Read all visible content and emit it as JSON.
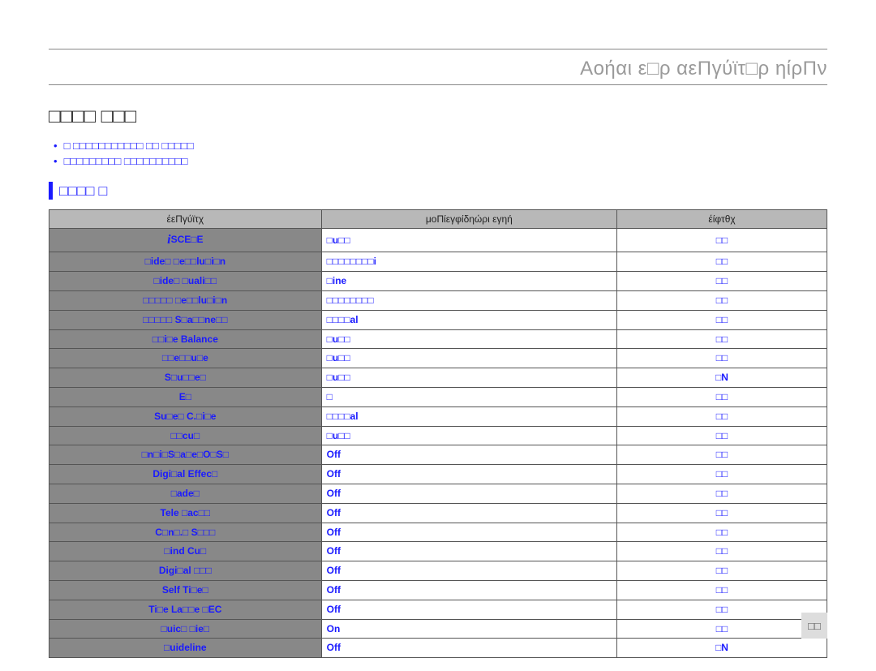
{
  "chapter_title": "Αοήαι ε□ρ αεΠγύϊτ□ρ ηίρΠν",
  "page_title": "□□□□ □□□",
  "bullets": [
    "□ □□□□□□□□□□□ □□ □□□□□",
    "□□□□□□□□□ □□□□□□□□□□"
  ],
  "section_heading": "□□□□ □",
  "columns": {
    "name": "έεΠγύϊτχ",
    "default": "μοΠίεγφίδηώρι εγηή",
    "osd": "έίφτθχ"
  },
  "rows": [
    {
      "name": "SCE□E",
      "iscene": true,
      "default": "□u□□",
      "osd": "□□"
    },
    {
      "name": "□ide□ □e□□lu□i□n",
      "default": "□□□□□□□□i",
      "osd": "□□"
    },
    {
      "name": "□ide□ □uali□□",
      "default": "□ine",
      "osd": "□□"
    },
    {
      "name": "□□□□□ □e□□lu□i□n",
      "default": "□□□□□□□□",
      "osd": "□□"
    },
    {
      "name": "□□□□□ S□a□□ne□□",
      "default": "□□□□al",
      "osd": "□□"
    },
    {
      "name": "□□i□e Balance",
      "default": "□u□□",
      "osd": "□□"
    },
    {
      "name": "□□e□□u□e",
      "default": "□u□□",
      "osd": "□□"
    },
    {
      "name": "S□u□□e□",
      "default": "□u□□",
      "osd": "□N"
    },
    {
      "name": "E□",
      "default": "□",
      "osd": "□□"
    },
    {
      "name": "Su□e□ C.□i□e",
      "default": "□□□□al",
      "osd": "□□"
    },
    {
      "name": "□□cu□",
      "default": "□u□□",
      "osd": "□□"
    },
    {
      "name": "□n□i□S□a□e□O□S□",
      "default": "Off",
      "osd": "□□"
    },
    {
      "name": "Digi□al Effec□",
      "default": "Off",
      "osd": "□□"
    },
    {
      "name": "□ade□",
      "default": "Off",
      "osd": "□□"
    },
    {
      "name": "Tele □ac□□",
      "default": "Off",
      "osd": "□□"
    },
    {
      "name": "C□n□.□ S□□□",
      "default": "Off",
      "osd": "□□"
    },
    {
      "name": "□ind Cu□",
      "default": "Off",
      "osd": "□□"
    },
    {
      "name": "Digi□al □□□",
      "default": "Off",
      "osd": "□□"
    },
    {
      "name": "Self Ti□e□",
      "default": "Off",
      "osd": "□□"
    },
    {
      "name": "Ti□e La□□e □EC",
      "default": "Off",
      "osd": "□□"
    },
    {
      "name": "□uic□ □ie□",
      "default": "On",
      "osd": "□□"
    },
    {
      "name": "□uideline",
      "default": "Off",
      "osd": "□N"
    }
  ],
  "page_number": "□□"
}
